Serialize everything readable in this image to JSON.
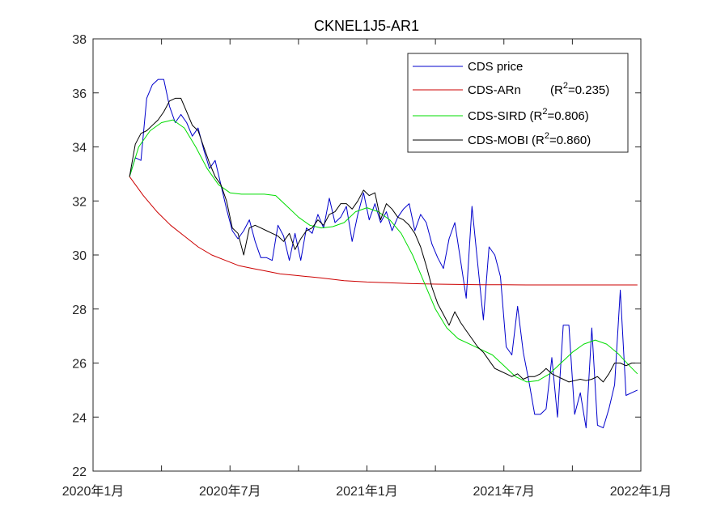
{
  "chart_data": {
    "type": "line",
    "title": "CKNEL1J5-AR1",
    "xlabel": "",
    "ylabel": "",
    "x_ticks": [
      "2020年1月",
      "2020年7月",
      "2021年1月",
      "2021年7月",
      "2022年1月"
    ],
    "x_range_months": [
      0,
      24
    ],
    "ylim": [
      22,
      38
    ],
    "y_ticks": [
      22,
      24,
      26,
      28,
      30,
      32,
      34,
      36,
      38
    ],
    "y_tick_labels": [
      "22",
      "24",
      "26",
      "28",
      "30",
      "32",
      "34",
      "36",
      "38"
    ],
    "grid": false,
    "legend_position": "top-right",
    "legend": [
      {
        "name": "CDS price",
        "r2_prefix": "",
        "r2_value": ""
      },
      {
        "name": "CDS-ARn",
        "r2_prefix": "(R",
        "r2_value": "=0.235)"
      },
      {
        "name": "CDS-SIRD",
        "r2_prefix": "(R",
        "r2_value": "=0.806)"
      },
      {
        "name": "CDS-MOBI",
        "r2_prefix": "(R",
        "r2_value": "=0.860)"
      }
    ],
    "r2_superscript": "2",
    "series": [
      {
        "name": "CDS price",
        "color": "#0000cc",
        "x": [
          1.6,
          1.85,
          2.1,
          2.35,
          2.6,
          2.85,
          3.1,
          3.35,
          3.6,
          3.85,
          4.1,
          4.35,
          4.6,
          4.85,
          5.1,
          5.35,
          5.6,
          5.85,
          6.1,
          6.35,
          6.6,
          6.85,
          7.1,
          7.35,
          7.6,
          7.85,
          8.1,
          8.35,
          8.6,
          8.85,
          9.1,
          9.35,
          9.6,
          9.85,
          10.1,
          10.35,
          10.6,
          10.85,
          11.1,
          11.35,
          11.6,
          11.85,
          12.1,
          12.35,
          12.6,
          12.85,
          13.1,
          13.35,
          13.6,
          13.85,
          14.1,
          14.35,
          14.6,
          14.85,
          15.1,
          15.35,
          15.6,
          15.85,
          16.1,
          16.35,
          16.6,
          16.85,
          17.1,
          17.35,
          17.6,
          17.85,
          18.1,
          18.35,
          18.6,
          18.85,
          19.1,
          19.35,
          19.6,
          19.85,
          20.1,
          20.35,
          20.6,
          20.85,
          21.1,
          21.35,
          21.6,
          21.85,
          22.1,
          22.35
        ],
        "values": [
          32.9,
          33.6,
          33.5,
          35.8,
          36.3,
          36.5,
          36.5,
          35.5,
          34.9,
          35.2,
          34.9,
          34.4,
          34.7,
          33.9,
          33.2,
          33.5,
          32.6,
          31.7,
          30.9,
          30.6,
          30.9,
          31.3,
          30.5,
          29.9,
          29.9,
          29.8,
          31.1,
          30.7,
          29.8,
          30.8,
          29.8,
          31.0,
          30.8,
          31.5,
          31.0,
          32.1,
          31.2,
          31.4,
          31.8,
          30.5,
          31.5,
          32.3,
          31.3,
          31.9,
          31.2,
          31.6,
          30.9,
          31.4,
          31.7,
          31.9,
          30.9,
          31.5,
          31.2,
          30.4,
          29.9,
          29.5,
          30.6,
          31.2,
          29.8,
          28.4,
          31.8,
          29.7,
          27.6,
          30.3,
          30.0,
          29.2,
          26.6,
          26.3,
          28.1,
          26.4,
          25.3,
          24.1,
          24.1,
          24.3,
          26.2,
          24.0,
          27.4,
          27.4,
          24.1,
          24.9,
          23.6,
          27.3,
          23.7,
          23.6
        ],
        "tail_x": [
          22.6,
          22.85,
          23.1,
          23.35,
          23.6,
          23.85
        ],
        "tail_values": [
          24.3,
          25.2,
          28.7,
          24.8,
          24.9,
          25.0
        ]
      },
      {
        "name": "CDS-ARn",
        "color": "#cc0000",
        "x": [
          1.6,
          2.2,
          2.8,
          3.4,
          4.0,
          4.6,
          5.2,
          5.8,
          6.4,
          7.0,
          7.6,
          8.2,
          8.8,
          9.4,
          10.0,
          11.0,
          12.0,
          13.0,
          14.0,
          15.0,
          16.0,
          17.0,
          18.0,
          19.0,
          20.0,
          21.0,
          22.0,
          23.0,
          23.85
        ],
        "values": [
          32.9,
          32.2,
          31.6,
          31.1,
          30.7,
          30.3,
          30.0,
          29.8,
          29.6,
          29.5,
          29.4,
          29.3,
          29.25,
          29.2,
          29.15,
          29.05,
          29.0,
          28.97,
          28.94,
          28.92,
          28.91,
          28.9,
          28.9,
          28.89,
          28.89,
          28.89,
          28.89,
          28.89,
          28.89
        ]
      },
      {
        "name": "CDS-SIRD",
        "color": "#00dd00",
        "x": [
          1.6,
          2.0,
          2.5,
          3.0,
          3.5,
          4.0,
          4.5,
          5.0,
          5.5,
          6.0,
          6.5,
          7.0,
          7.5,
          8.0,
          8.5,
          9.0,
          9.5,
          10.0,
          10.5,
          11.0,
          11.5,
          12.0,
          12.5,
          13.0,
          13.5,
          14.0,
          14.5,
          15.0,
          15.5,
          16.0,
          16.5,
          17.0,
          17.5,
          18.0,
          18.5,
          19.0,
          19.5,
          20.0,
          20.5,
          21.0,
          21.5,
          22.0,
          22.5,
          23.0,
          23.5,
          23.85
        ],
        "values": [
          32.9,
          34.0,
          34.6,
          34.9,
          35.0,
          34.7,
          34.0,
          33.2,
          32.6,
          32.3,
          32.25,
          32.25,
          32.25,
          32.2,
          31.8,
          31.4,
          31.1,
          31.0,
          31.05,
          31.2,
          31.6,
          31.75,
          31.6,
          31.3,
          30.8,
          30.0,
          29.0,
          28.0,
          27.3,
          26.9,
          26.7,
          26.5,
          26.3,
          25.9,
          25.5,
          25.3,
          25.35,
          25.6,
          26.0,
          26.4,
          26.7,
          26.85,
          26.7,
          26.35,
          25.9,
          25.6
        ]
      },
      {
        "name": "CDS-MOBI",
        "color": "#000000",
        "x": [
          1.6,
          1.85,
          2.1,
          2.35,
          2.6,
          2.85,
          3.1,
          3.35,
          3.6,
          3.85,
          4.1,
          4.35,
          4.6,
          4.85,
          5.1,
          5.35,
          5.6,
          5.85,
          6.1,
          6.35,
          6.6,
          6.85,
          7.1,
          7.35,
          7.6,
          7.85,
          8.1,
          8.35,
          8.6,
          8.85,
          9.1,
          9.35,
          9.6,
          9.85,
          10.1,
          10.35,
          10.6,
          10.85,
          11.1,
          11.35,
          11.6,
          11.85,
          12.1,
          12.35,
          12.6,
          12.85,
          13.1,
          13.35,
          13.6,
          13.85,
          14.1,
          14.35,
          14.6,
          14.85,
          15.1,
          15.35,
          15.6,
          15.85,
          16.1,
          16.35,
          16.6,
          16.85,
          17.1,
          17.35,
          17.6,
          17.85,
          18.1,
          18.35,
          18.6,
          18.85,
          19.1,
          19.35,
          19.6,
          19.85,
          20.1,
          20.35,
          20.6,
          20.85,
          21.1,
          21.35,
          21.6,
          21.85,
          22.1,
          22.35,
          22.6,
          22.85,
          23.1,
          23.35,
          23.6,
          23.85
        ],
        "values": [
          32.9,
          34.1,
          34.5,
          34.6,
          34.8,
          35.0,
          35.3,
          35.7,
          35.8,
          35.8,
          35.3,
          34.8,
          34.6,
          34.0,
          33.4,
          32.9,
          32.6,
          32.0,
          31.0,
          30.8,
          30.0,
          31.0,
          31.1,
          31.0,
          30.9,
          30.8,
          30.7,
          30.5,
          30.8,
          30.2,
          30.6,
          30.9,
          31.0,
          31.3,
          31.1,
          31.5,
          31.6,
          31.9,
          31.9,
          31.7,
          32.0,
          32.4,
          32.2,
          32.3,
          31.3,
          31.9,
          31.7,
          31.4,
          31.3,
          31.1,
          30.8,
          30.3,
          29.6,
          28.8,
          28.2,
          27.8,
          27.4,
          27.9,
          27.5,
          27.2,
          26.9,
          26.6,
          26.4,
          26.1,
          25.8,
          25.7,
          25.6,
          25.5,
          25.6,
          25.4,
          25.5,
          25.5,
          25.6,
          25.8,
          25.6,
          25.5,
          25.4,
          25.3,
          25.35,
          25.4,
          25.35,
          25.4,
          25.5,
          25.3,
          25.6,
          26.0,
          26.0,
          25.9,
          26.0,
          26.0
        ]
      }
    ]
  }
}
